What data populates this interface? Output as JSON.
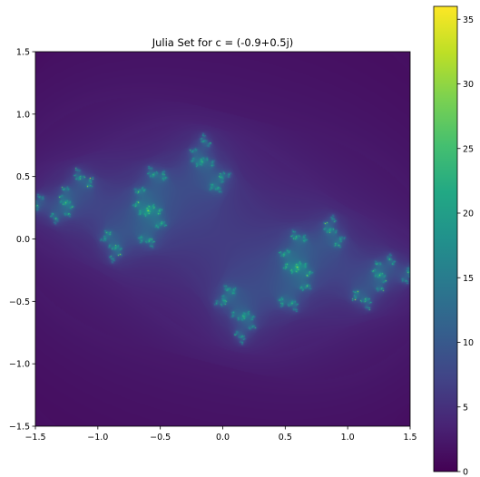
{
  "chart_data": {
    "type": "heatmap",
    "title": "Julia Set for c = (-0.9+0.5j)",
    "xlabel": "",
    "ylabel": "",
    "xlim": [
      -1.5,
      1.5
    ],
    "ylim": [
      -1.5,
      1.5
    ],
    "c_real": -0.9,
    "c_imag": 0.5,
    "colormap": "viridis",
    "grid": false,
    "x_ticks": [
      -1.5,
      -1.0,
      -0.5,
      0.0,
      0.5,
      1.0,
      1.5
    ],
    "x_tick_labels": [
      "−1.5",
      "−1.0",
      "−0.5",
      "0.0",
      "0.5",
      "1.0",
      "1.5"
    ],
    "y_ticks": [
      1.5,
      1.0,
      0.5,
      0.0,
      -0.5,
      -1.0,
      -1.5
    ],
    "y_tick_labels": [
      "1.5",
      "1.0",
      "0.5",
      "0.0",
      "−0.5",
      "−1.0",
      "−1.5"
    ],
    "colorbar": {
      "range": [
        0,
        36
      ],
      "ticks": [
        0,
        5,
        10,
        15,
        20,
        25,
        30,
        35
      ],
      "tick_labels": [
        "0",
        "5",
        "10",
        "15",
        "20",
        "25",
        "30",
        "35"
      ],
      "placement": "right"
    }
  }
}
